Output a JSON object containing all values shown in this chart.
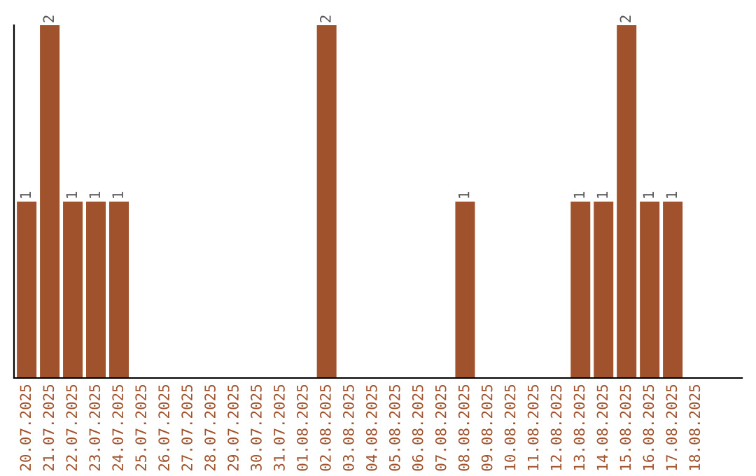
{
  "chart_data": {
    "type": "bar",
    "categories": [
      "20.07.2025",
      "21.07.2025",
      "22.07.2025",
      "23.07.2025",
      "24.07.2025",
      "25.07.2025",
      "26.07.2025",
      "27.07.2025",
      "28.07.2025",
      "29.07.2025",
      "30.07.2025",
      "31.07.2025",
      "01.08.2025",
      "02.08.2025",
      "03.08.2025",
      "04.08.2025",
      "05.08.2025",
      "06.08.2025",
      "07.08.2025",
      "08.08.2025",
      "09.08.2025",
      "10.08.2025",
      "11.08.2025",
      "12.08.2025",
      "13.08.2025",
      "14.08.2025",
      "15.08.2025",
      "16.08.2025",
      "17.08.2025",
      "18.08.2025"
    ],
    "values": [
      1,
      2,
      1,
      1,
      1,
      0,
      0,
      0,
      0,
      0,
      0,
      0,
      0,
      2,
      0,
      0,
      0,
      0,
      0,
      1,
      0,
      0,
      0,
      0,
      1,
      1,
      2,
      1,
      1,
      0
    ],
    "value_labels": [
      "1",
      "2",
      "1",
      "1",
      "1",
      null,
      null,
      null,
      null,
      null,
      null,
      null,
      null,
      "2",
      null,
      null,
      null,
      null,
      null,
      "1",
      null,
      null,
      null,
      null,
      "1",
      "1",
      "2",
      "1",
      "1",
      null
    ],
    "color": "#a0522d",
    "ylim": [
      0,
      2.0
    ],
    "tick_labels": "x",
    "grid": false,
    "legend": false
  }
}
